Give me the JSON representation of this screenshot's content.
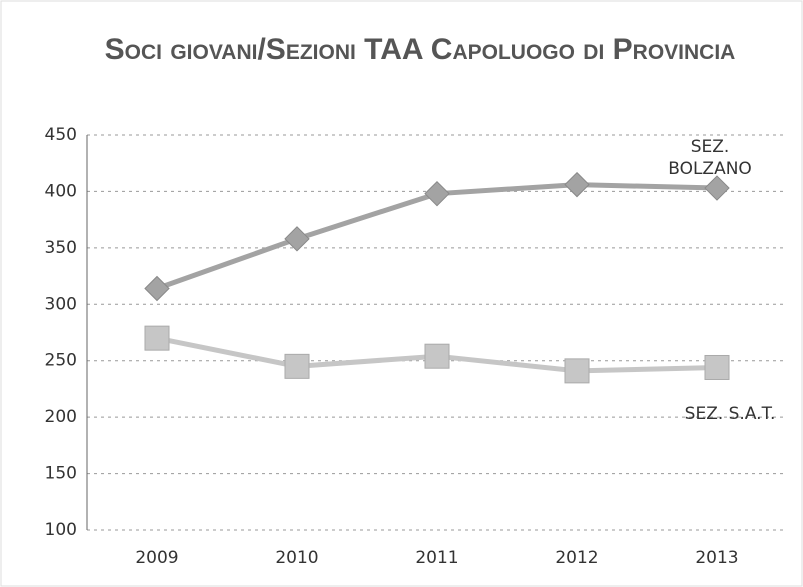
{
  "chart_data": {
    "type": "line",
    "title": "Soci giovani/Sezioni TAA Capoluogo di Provincia",
    "categories": [
      "2009",
      "2010",
      "2011",
      "2012",
      "2013"
    ],
    "series": [
      {
        "name": "SEZ. BOLZANO",
        "color": "#a3a3a3",
        "marker": "diamond",
        "values": [
          314,
          358,
          398,
          406,
          403
        ]
      },
      {
        "name": "SEZ. S.A.T.",
        "color": "#c6c6c6",
        "marker": "square",
        "values": [
          270,
          245,
          254,
          241,
          244
        ]
      }
    ],
    "ylim": [
      100,
      450
    ],
    "yticks": [
      100,
      150,
      200,
      250,
      300,
      350,
      400,
      450
    ],
    "grid": true
  }
}
